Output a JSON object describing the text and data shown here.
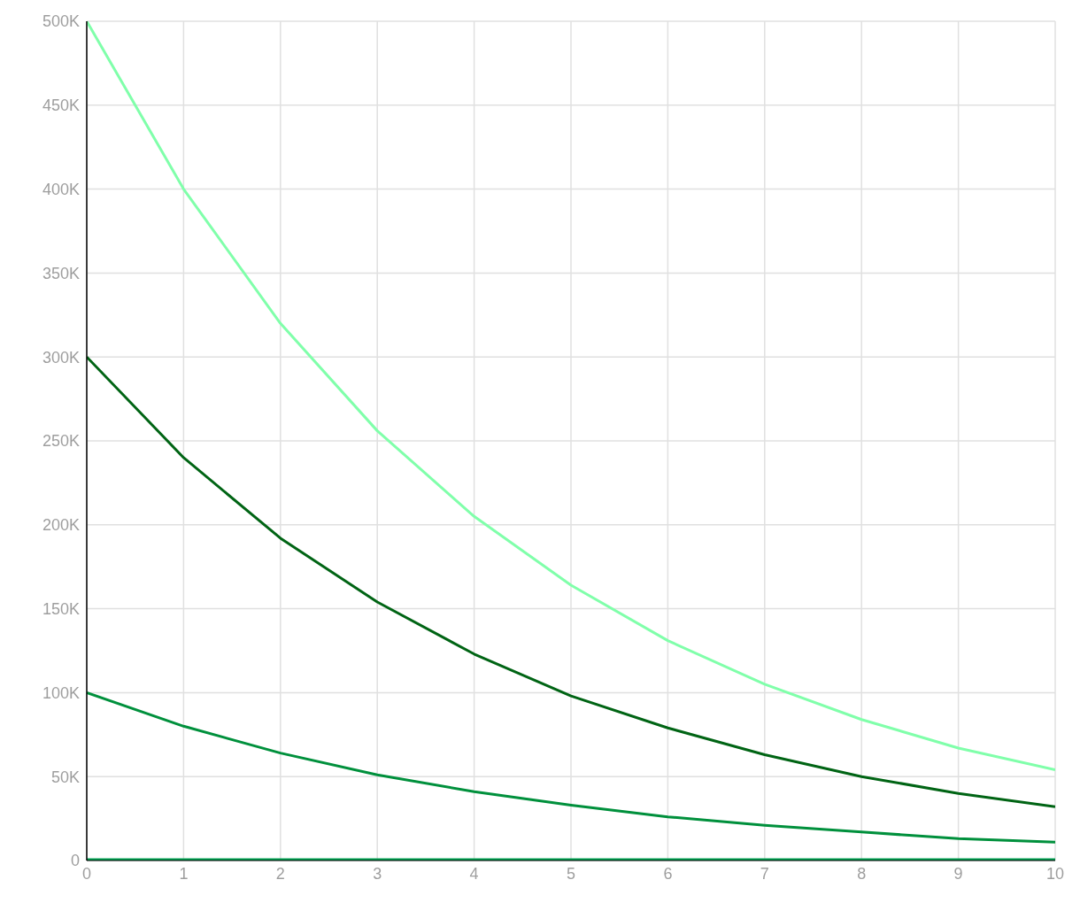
{
  "chart_data": {
    "type": "line",
    "x": [
      0,
      1,
      2,
      3,
      4,
      5,
      6,
      7,
      8,
      9,
      10
    ],
    "series": [
      {
        "color": "#80ffaa",
        "values": [
          500000,
          400000,
          320000,
          256000,
          205000,
          164000,
          131000,
          105000,
          84000,
          67000,
          54000
        ]
      },
      {
        "color": "#006414",
        "values": [
          300000,
          240000,
          192000,
          154000,
          123000,
          98000,
          79000,
          63000,
          50000,
          40000,
          32000
        ]
      },
      {
        "color": "#00903c",
        "values": [
          100000,
          80000,
          64000,
          51000,
          41000,
          33000,
          26000,
          21000,
          17000,
          13000,
          11000
        ]
      },
      {
        "color": "#00a050",
        "values": [
          0,
          0,
          0,
          0,
          0,
          0,
          0,
          0,
          0,
          0,
          0
        ]
      }
    ],
    "xlim": [
      0,
      10
    ],
    "xticks": [
      0,
      1,
      2,
      3,
      4,
      5,
      6,
      7,
      8,
      9,
      10
    ],
    "ylim": [
      0,
      500000
    ],
    "yticks": [
      0,
      {
        "value": 50000,
        "label": "50K"
      },
      {
        "value": 100000,
        "label": "100K"
      },
      {
        "value": 150000,
        "label": "150K"
      },
      {
        "value": 200000,
        "label": "200K"
      },
      {
        "value": 250000,
        "label": "250K"
      },
      {
        "value": 300000,
        "label": "300K"
      },
      {
        "value": 350000,
        "label": "350K"
      },
      {
        "value": 400000,
        "label": "400K"
      },
      {
        "value": 450000,
        "label": "450K"
      },
      {
        "value": 500000,
        "label": "500K"
      }
    ],
    "grid": true,
    "marker": "none",
    "line_style": "solid"
  }
}
